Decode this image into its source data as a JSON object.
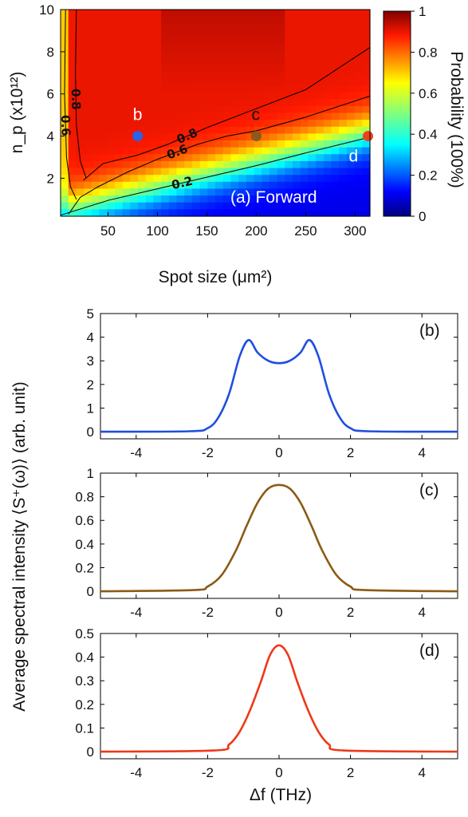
{
  "chart_data": [
    {
      "type": "heatmap",
      "panel_label": "(a) Forward",
      "xlabel": "Spot size (μm²)",
      "ylabel": "n_p (x10¹²)",
      "xlim": [
        2,
        315
      ],
      "ylim": [
        0.2,
        10
      ],
      "x_ticks": [
        "50",
        "100",
        "150",
        "200",
        "250",
        "300"
      ],
      "y_ticks": [
        "2",
        "4",
        "6",
        "8",
        "10"
      ],
      "colorbar": {
        "label": "Probability (100%)",
        "range": [
          0,
          1
        ],
        "ticks": [
          "0",
          "0.2",
          "0.4",
          "0.6",
          "0.8",
          "1"
        ],
        "colormap": "jet"
      },
      "contours": [
        {
          "level": "0.2",
          "points": [
            [
              2,
              0.25
            ],
            [
              50,
              0.95
            ],
            [
              100,
              1.5
            ],
            [
              150,
              2.05
            ],
            [
              200,
              2.6
            ],
            [
              250,
              3.2
            ],
            [
              315,
              3.95
            ]
          ]
        },
        {
          "level": "0.6",
          "points": [
            [
              10,
              0.3
            ],
            [
              22,
              1.1
            ],
            [
              40,
              1.6
            ],
            [
              70,
              2.3
            ],
            [
              100,
              2.9
            ],
            [
              140,
              3.6
            ],
            [
              170,
              4.0
            ],
            [
              200,
              4.25
            ],
            [
              250,
              4.9
            ],
            [
              315,
              5.9
            ]
          ]
        },
        {
          "level": "0.8",
          "points": [
            [
              25,
              1.9
            ],
            [
              45,
              2.7
            ],
            [
              80,
              3.1
            ],
            [
              110,
              3.6
            ],
            [
              150,
              4.4
            ],
            [
              200,
              5.3
            ],
            [
              250,
              6.2
            ],
            [
              315,
              8.2
            ]
          ]
        },
        {
          "level": "0.6",
          "points": [
            [
              7,
              10
            ],
            [
              6,
              6
            ],
            [
              8,
              3
            ],
            [
              12,
              1.6
            ],
            [
              18,
              1.0
            ]
          ]
        },
        {
          "level": "0.8",
          "points": [
            [
              18,
              10
            ],
            [
              17,
              7
            ],
            [
              18,
              4.5
            ],
            [
              22,
              2.8
            ],
            [
              28,
              2.0
            ]
          ]
        }
      ],
      "markers": [
        {
          "label": "b",
          "x": 80,
          "y": 4.0,
          "color": "#2a62e8"
        },
        {
          "label": "c",
          "x": 200,
          "y": 4.0,
          "color": "#8c5a1e"
        },
        {
          "label": "d",
          "x": 313,
          "y": 4.0,
          "color": "#ee4020"
        }
      ]
    },
    {
      "type": "line",
      "panel_label": "(b)",
      "xlim": [
        -5,
        5
      ],
      "ylim": [
        -0.3,
        5
      ],
      "x_ticks": [
        "-4",
        "-2",
        "0",
        "2",
        "4"
      ],
      "y_ticks": [
        "0",
        "1",
        "2",
        "3",
        "4",
        "5"
      ],
      "series": [
        {
          "color": "#1f4fe0",
          "x": [
            -5,
            -2.5,
            -2,
            -1.7,
            -1.4,
            -1.1,
            -0.85,
            -0.6,
            -0.3,
            0,
            0.3,
            0.6,
            0.85,
            1.1,
            1.4,
            1.7,
            2,
            2.5,
            5
          ],
          "y": [
            0,
            0.02,
            0.15,
            0.6,
            1.6,
            3.2,
            3.88,
            3.35,
            3.0,
            2.9,
            3.0,
            3.35,
            3.88,
            3.2,
            1.6,
            0.6,
            0.15,
            0.02,
            0
          ]
        }
      ]
    },
    {
      "type": "line",
      "panel_label": "(c)",
      "xlim": [
        -5,
        5
      ],
      "ylim": [
        -0.06,
        1
      ],
      "x_ticks": [
        "-4",
        "-2",
        "0",
        "2",
        "4"
      ],
      "y_ticks": [
        "0",
        "0.2",
        "0.4",
        "0.6",
        "0.8",
        "1"
      ],
      "series": [
        {
          "color": "#8c5a14",
          "x": [
            -5,
            -2.4,
            -2,
            -1.6,
            -1.2,
            -0.9,
            -0.6,
            -0.3,
            0,
            0.3,
            0.6,
            0.9,
            1.2,
            1.6,
            2,
            2.4,
            5
          ],
          "y": [
            0,
            0.01,
            0.04,
            0.14,
            0.35,
            0.56,
            0.75,
            0.87,
            0.9,
            0.87,
            0.75,
            0.56,
            0.35,
            0.14,
            0.04,
            0.01,
            0
          ]
        }
      ]
    },
    {
      "type": "line",
      "panel_label": "(d)",
      "xlabel": "Δf (THz)",
      "xlim": [
        -5,
        5
      ],
      "ylim": [
        -0.03,
        0.5
      ],
      "x_ticks": [
        "-4",
        "-2",
        "0",
        "2",
        "4"
      ],
      "y_ticks": [
        "0",
        "0.1",
        "0.2",
        "0.3",
        "0.4",
        "0.5"
      ],
      "series": [
        {
          "color": "#ee3818",
          "x": [
            -5,
            -1.8,
            -1.4,
            -1.1,
            -0.8,
            -0.5,
            -0.25,
            0,
            0.25,
            0.5,
            0.8,
            1.1,
            1.4,
            1.8,
            5
          ],
          "y": [
            0,
            0.005,
            0.03,
            0.085,
            0.18,
            0.3,
            0.41,
            0.45,
            0.41,
            0.3,
            0.18,
            0.085,
            0.03,
            0.005,
            0
          ]
        }
      ]
    }
  ],
  "shared_ylabel": "Average spectral intensity ⟨S⁺(ω)⟩ (arb. unit)"
}
